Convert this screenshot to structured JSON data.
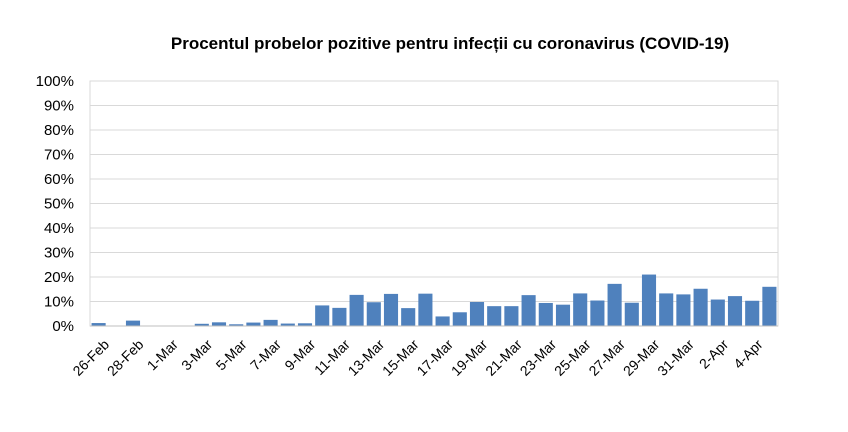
{
  "chart_data": {
    "type": "bar",
    "title": "Procentul probelor pozitive pentru infecții cu coronavirus  (COVID-19)",
    "xlabel": "",
    "ylabel": "",
    "ylim": [
      0,
      100
    ],
    "yticks": [
      "0%",
      "10%",
      "20%",
      "30%",
      "40%",
      "50%",
      "60%",
      "70%",
      "80%",
      "90%",
      "100%"
    ],
    "grid": true,
    "legend": "none",
    "bar_color": "#4f81bd",
    "categories": [
      "26-Feb",
      "27-Feb",
      "28-Feb",
      "29-Feb",
      "1-Mar",
      "2-Mar",
      "3-Mar",
      "4-Mar",
      "5-Mar",
      "6-Mar",
      "7-Mar",
      "8-Mar",
      "9-Mar",
      "10-Mar",
      "11-Mar",
      "12-Mar",
      "13-Mar",
      "14-Mar",
      "15-Mar",
      "16-Mar",
      "17-Mar",
      "18-Mar",
      "19-Mar",
      "20-Mar",
      "21-Mar",
      "22-Mar",
      "23-Mar",
      "24-Mar",
      "25-Mar",
      "26-Mar",
      "27-Mar",
      "28-Mar",
      "29-Mar",
      "30-Mar",
      "31-Mar",
      "1-Apr",
      "2-Apr",
      "3-Apr",
      "4-Apr",
      "5-Apr"
    ],
    "values": [
      1.2,
      0,
      2.2,
      0,
      0,
      0,
      0.9,
      1.5,
      0.7,
      1.4,
      2.5,
      1.0,
      1.1,
      8.4,
      7.4,
      12.7,
      9.7,
      13.1,
      7.3,
      13.2,
      3.9,
      5.6,
      9.8,
      8.1,
      8.1,
      12.6,
      9.4,
      8.7,
      13.3,
      10.4,
      17.2,
      9.5,
      21.0,
      13.3,
      12.9,
      15.2,
      10.8,
      12.2,
      10.3,
      16.0
    ],
    "shown_tick_labels": [
      "26-Feb",
      "28-Feb",
      "1-Mar",
      "3-Mar",
      "5-Mar",
      "7-Mar",
      "9-Mar",
      "11-Mar",
      "13-Mar",
      "15-Mar",
      "17-Mar",
      "19-Mar",
      "21-Mar",
      "23-Mar",
      "25-Mar",
      "27-Mar",
      "29-Mar",
      "31-Mar",
      "2-Apr",
      "4-Apr"
    ]
  }
}
